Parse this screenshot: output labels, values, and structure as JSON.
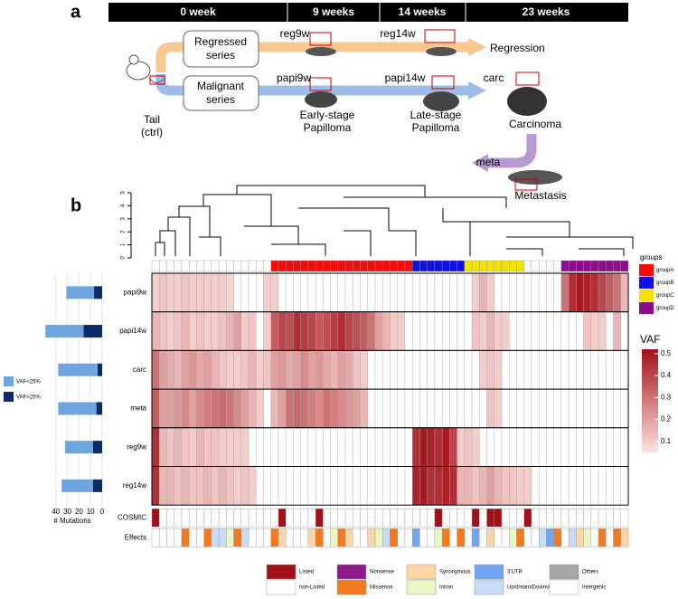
{
  "panel_a": {
    "label": "a",
    "timeline": [
      "0 week",
      "9 weeks",
      "14 weeks",
      "23 weeks"
    ],
    "regressed_box": [
      "Regressed",
      "series"
    ],
    "malignant_box": [
      "Malignant",
      "series"
    ],
    "tail": [
      "Tail",
      "(ctrl)"
    ],
    "reg9w": "reg9w",
    "reg14w": "reg14w",
    "regression": "Regression",
    "papi9w": "papi9w",
    "papi14w": "papi14w",
    "carc": "carc",
    "meta": "meta",
    "early": [
      "Early-stage",
      "Papilloma"
    ],
    "late": [
      "Late-stage",
      "Papilloma"
    ],
    "carcinoma": "Carcinoma",
    "metastasis": "Metastasis"
  },
  "panel_b": {
    "label": "b",
    "dendro_ticks": [
      0,
      1,
      2,
      3,
      4,
      5
    ],
    "dendro_lim": [
      0,
      5
    ]
  },
  "chart_data": [
    {
      "type": "stacked-barh",
      "x_label": "# Mutations",
      "xlim": [
        50,
        0
      ],
      "xticks": [
        40,
        30,
        20,
        10,
        0
      ],
      "grid": true,
      "series": [
        {
          "name": "VAF>25%",
          "color": "#0e2a6b",
          "values": [
            7,
            16,
            4,
            5,
            8,
            8
          ]
        },
        {
          "name": "VAF<25%",
          "color": "#6fa5df",
          "values": [
            24,
            33,
            34,
            33,
            24,
            27
          ]
        }
      ]
    },
    {
      "type": "heatmap",
      "legend_title": "VAF",
      "vaf_lim": [
        0.05,
        0.52
      ],
      "vaf_ticks": [
        0.1,
        0.2,
        0.3,
        0.4,
        0.5
      ],
      "low_color": "#fde3df",
      "high_color": "#a3101a",
      "groups_title": "groups",
      "group_legend": [
        {
          "name": "groupA",
          "color": "#f20d0d"
        },
        {
          "name": "groupB",
          "color": "#1010e0"
        },
        {
          "name": "groupC",
          "color": "#f2e205"
        },
        {
          "name": "groupD",
          "color": "#8c0c8c"
        }
      ],
      "groups": [
        null,
        null,
        null,
        null,
        null,
        null,
        null,
        null,
        null,
        null,
        null,
        null,
        null,
        null,
        null,
        null,
        "groupA",
        "groupA",
        "groupA",
        "groupA",
        "groupA",
        "groupA",
        "groupA",
        "groupA",
        "groupA",
        "groupA",
        "groupA",
        "groupA",
        "groupA",
        "groupA",
        "groupA",
        "groupA",
        "groupA",
        "groupA",
        "groupA",
        "groupB",
        "groupB",
        "groupB",
        "groupB",
        "groupB",
        "groupB",
        "groupB",
        "groupC",
        "groupC",
        "groupC",
        "groupC",
        "groupC",
        "groupC",
        "groupC",
        "groupC",
        null,
        null,
        null,
        null,
        null,
        "groupD",
        "groupD",
        "groupD",
        "groupD",
        "groupD",
        "groupD",
        "groupD",
        "groupD",
        "groupD"
      ],
      "rows": [
        {
          "name": "papi9w",
          "values": [
            0.1,
            0.12,
            0.1,
            0.1,
            0.12,
            0.1,
            0.1,
            0.1,
            0.1,
            0.1,
            0.08,
            0,
            0,
            0,
            0,
            0.1,
            0.1,
            0,
            0,
            0,
            0,
            0,
            0,
            0,
            0,
            0,
            0,
            0,
            0,
            0,
            0,
            0,
            0,
            0,
            0,
            0,
            0,
            0,
            0,
            0,
            0,
            0,
            0,
            0.1,
            0.15,
            0.1,
            0,
            0,
            0,
            0,
            0,
            0,
            0,
            0,
            0,
            0.3,
            0.45,
            0.5,
            0.48,
            0.45,
            0.4,
            0.35,
            0.3,
            0.15
          ]
        },
        {
          "name": "papi14w",
          "values": [
            0.15,
            0.12,
            0.1,
            0.12,
            0.15,
            0.1,
            0.12,
            0.1,
            0.1,
            0.12,
            0.15,
            0.2,
            0.1,
            0.12,
            0,
            0.1,
            0.35,
            0.4,
            0.38,
            0.45,
            0.42,
            0.4,
            0.35,
            0.38,
            0.42,
            0.45,
            0.4,
            0.38,
            0.35,
            0.3,
            0.2,
            0.15,
            0.1,
            0.1,
            0,
            0,
            0,
            0,
            0,
            0,
            0,
            0,
            0,
            0.12,
            0.1,
            0.15,
            0.1,
            0.1,
            0,
            0,
            0,
            0,
            0,
            0,
            0,
            0,
            0,
            0,
            0.12,
            0.1,
            0.1,
            0,
            0.15,
            0
          ]
        },
        {
          "name": "carc",
          "values": [
            0.3,
            0.2,
            0.18,
            0.15,
            0.2,
            0.22,
            0.18,
            0.2,
            0.15,
            0.12,
            0.1,
            0.1,
            0.12,
            0.15,
            0.1,
            0.12,
            0.2,
            0.22,
            0.18,
            0.2,
            0.25,
            0.2,
            0.22,
            0.18,
            0.15,
            0.2,
            0.18,
            0.12,
            0.1,
            0,
            0,
            0,
            0,
            0,
            0,
            0,
            0,
            0,
            0,
            0,
            0,
            0,
            0,
            0,
            0.1,
            0.12,
            0.1,
            0,
            0,
            0,
            0,
            0,
            0,
            0,
            0,
            0,
            0,
            0,
            0,
            0,
            0,
            0,
            0,
            0
          ]
        },
        {
          "name": "meta",
          "values": [
            0.35,
            0.2,
            0.2,
            0.22,
            0.25,
            0.2,
            0.25,
            0.28,
            0.3,
            0.32,
            0.3,
            0.25,
            0.2,
            0.15,
            0.1,
            0,
            0.15,
            0.2,
            0.3,
            0.32,
            0.3,
            0.28,
            0.25,
            0.3,
            0.28,
            0.25,
            0.22,
            0.2,
            0.15,
            0,
            0,
            0,
            0,
            0,
            0,
            0,
            0,
            0,
            0,
            0,
            0,
            0,
            0,
            0,
            0,
            0.12,
            0.1,
            0,
            0,
            0,
            0,
            0,
            0,
            0,
            0,
            0,
            0,
            0,
            0,
            0,
            0,
            0,
            0,
            0
          ]
        },
        {
          "name": "reg9w",
          "values": [
            0.45,
            0.15,
            0.12,
            0.15,
            0.12,
            0.1,
            0.15,
            0.12,
            0.12,
            0.1,
            0.1,
            0.1,
            0.1,
            0,
            0,
            0,
            0,
            0,
            0,
            0,
            0,
            0,
            0,
            0,
            0,
            0,
            0,
            0,
            0,
            0,
            0,
            0,
            0,
            0,
            0,
            0.45,
            0.5,
            0.48,
            0.45,
            0.5,
            0.4,
            0.1,
            0.12,
            0.1,
            0,
            0,
            0,
            0,
            0,
            0,
            0,
            0,
            0,
            0,
            0,
            0,
            0,
            0,
            0,
            0,
            0,
            0,
            0,
            0
          ]
        },
        {
          "name": "reg14w",
          "values": [
            0.45,
            0.15,
            0.15,
            0.12,
            0.15,
            0.12,
            0.12,
            0.15,
            0.12,
            0.15,
            0.12,
            0.1,
            0.12,
            0.1,
            0,
            0,
            0,
            0,
            0,
            0,
            0,
            0,
            0,
            0,
            0,
            0,
            0,
            0,
            0,
            0,
            0,
            0,
            0,
            0,
            0,
            0.48,
            0.5,
            0.45,
            0.45,
            0.48,
            0.45,
            0.15,
            0.15,
            0.12,
            0.15,
            0.2,
            0.15,
            0.12,
            0.12,
            0.1,
            0.1,
            0,
            0,
            0,
            0,
            0,
            0,
            0,
            0,
            0,
            0,
            0,
            0,
            0
          ]
        }
      ],
      "annotation_rows": [
        "COSMIC",
        "Effects"
      ],
      "cosmic": [
        "Listed",
        "non-Listed",
        "non-Listed",
        "non-Listed",
        "non-Listed",
        "non-Listed",
        "non-Listed",
        "non-Listed",
        "non-Listed",
        "non-Listed",
        "non-Listed",
        "non-Listed",
        "non-Listed",
        "non-Listed",
        "non-Listed",
        "non-Listed",
        "non-Listed",
        "Listed",
        "non-Listed",
        "non-Listed",
        "non-Listed",
        "non-Listed",
        "Listed",
        "non-Listed",
        "non-Listed",
        "non-Listed",
        "non-Listed",
        "non-Listed",
        "non-Listed",
        "non-Listed",
        "non-Listed",
        "non-Listed",
        "non-Listed",
        "non-Listed",
        "non-Listed",
        "non-Listed",
        "non-Listed",
        "non-Listed",
        "Listed",
        "non-Listed",
        "non-Listed",
        "non-Listed",
        "non-Listed",
        "Listed",
        "non-Listed",
        "Listed",
        "Listed",
        "non-Listed",
        "non-Listed",
        "non-Listed",
        "Listed",
        "non-Listed",
        "non-Listed",
        "non-Listed",
        "non-Listed",
        "non-Listed",
        "non-Listed",
        "non-Listed",
        "non-Listed",
        "non-Listed",
        "non-Listed",
        "non-Listed",
        "non-Listed",
        "non-Listed"
      ],
      "effects": [
        "Intergenic",
        "Intergenic",
        "Intergenic",
        "Intergenic",
        "Missense",
        "Intergenic",
        "Intergenic",
        "Missense",
        "Upstream/Downstream",
        "Upstream/Downstream",
        "Intron",
        "Missense",
        "Upstream/Downstream",
        "Intergenic",
        "Intergenic",
        "Intergenic",
        "Missense",
        "Synonymous",
        "Intergenic",
        "Intergenic",
        "Intergenic",
        "Synonymous",
        "Missense",
        "Intergenic",
        "Intron",
        "Missense",
        "Synonymous",
        "Intergenic",
        "Intergenic",
        "Synonymous",
        "Intron",
        "Upstream/Downstream",
        "Missense",
        "Intergenic",
        "Intergenic",
        "3'UTR",
        "Intergenic",
        "Intergenic",
        "Intron",
        "Missense",
        "Intergenic",
        "Missense",
        "Intergenic",
        "3'UTR",
        "Intergenic",
        "Synonymous",
        "Intergenic",
        "Intergenic",
        "Intron",
        "Missense",
        "Intergenic",
        "Intergenic",
        "Upstream/Downstream",
        "3'UTR",
        "Missense",
        "Intergenic",
        "Upstream/Downstream",
        "Synonymous",
        "Intron",
        "Intergenic",
        "Missense",
        "Intergenic",
        "Missense",
        "Synonymous"
      ],
      "annotation_legend": [
        {
          "name": "Listed",
          "color": "#a3101a"
        },
        {
          "name": "non-Listed",
          "color": "#ffffff"
        },
        {
          "name": "Nonsense",
          "color": "#8c1a8a"
        },
        {
          "name": "Missense",
          "color": "#f47a1f"
        },
        {
          "name": "Synonymous",
          "color": "#fcd6a6"
        },
        {
          "name": "Intron",
          "color": "#eaf6c4"
        },
        {
          "name": "3'UTR",
          "color": "#6fa5f2"
        },
        {
          "name": "Upstream/Downstream",
          "color": "#c9dcf7"
        },
        {
          "name": "Others",
          "color": "#a6a6a6"
        },
        {
          "name": "Intergenic",
          "color": "#ffffff"
        }
      ]
    }
  ]
}
